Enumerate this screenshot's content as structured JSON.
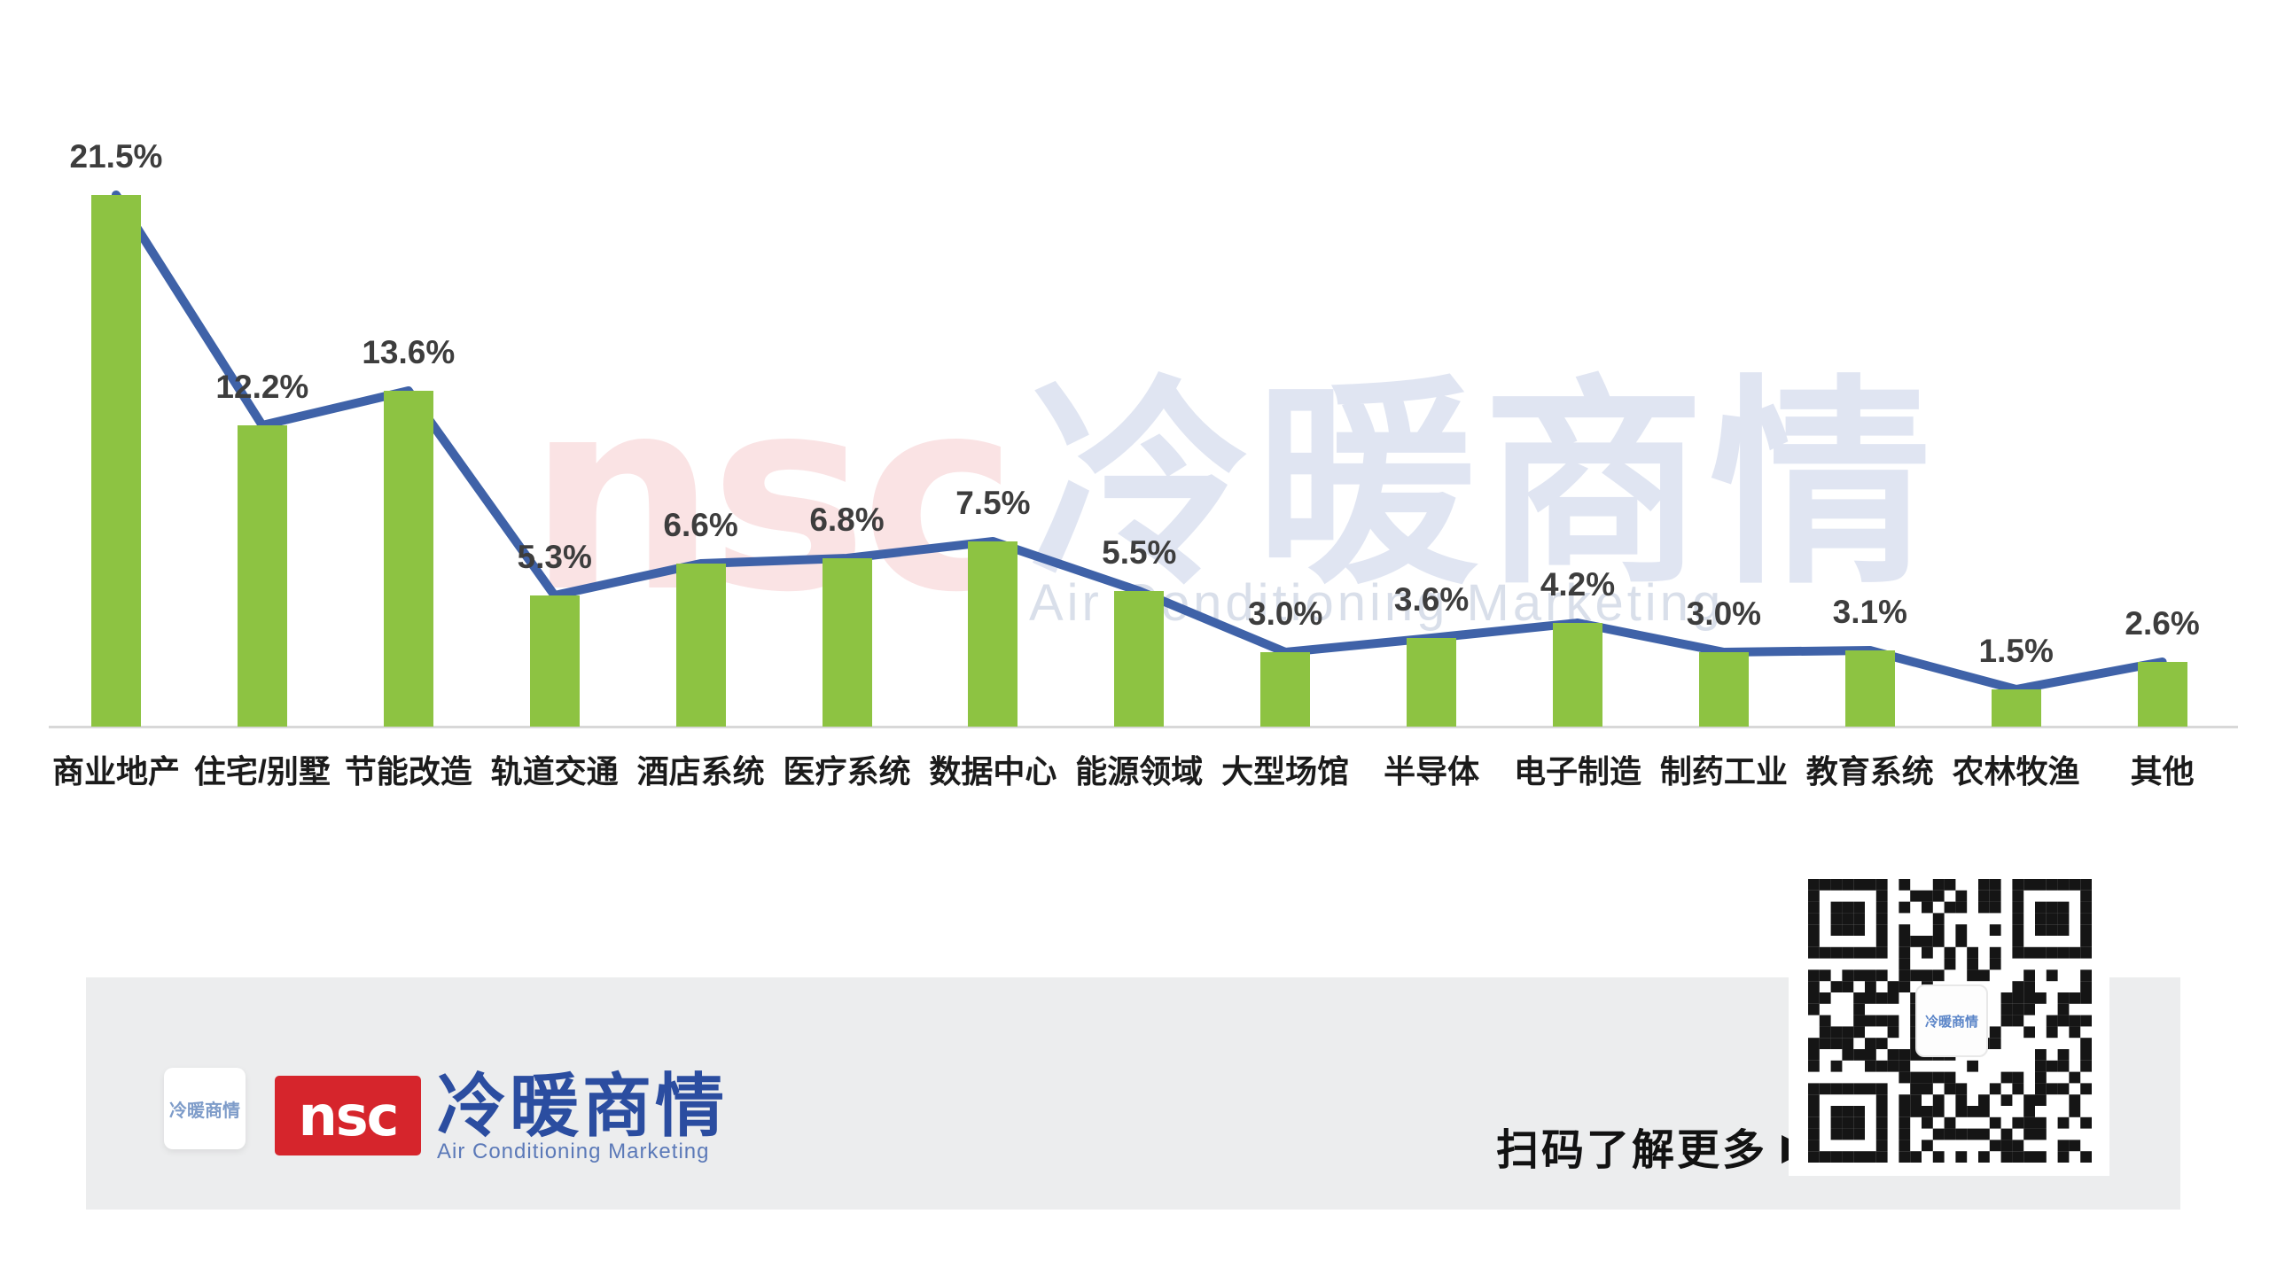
{
  "chart_data": {
    "type": "bar",
    "overlay": "line",
    "title": "",
    "categories": [
      "商业地产",
      "住宅/别墅",
      "节能改造",
      "轨道交通",
      "酒店系统",
      "医疗系统",
      "数据中心",
      "能源领域",
      "大型场馆",
      "半导体",
      "电子制造",
      "制药工业",
      "教育系统",
      "农林牧渔",
      "其他"
    ],
    "values": [
      21.5,
      12.2,
      13.6,
      5.3,
      6.6,
      6.8,
      7.5,
      5.5,
      3.0,
      3.6,
      4.2,
      3.0,
      3.1,
      1.5,
      2.6
    ],
    "value_labels": [
      "21.5%",
      "12.2%",
      "13.6%",
      "5.3%",
      "6.6%",
      "6.8%",
      "7.5%",
      "5.5%",
      "3.0%",
      "3.6%",
      "4.2%",
      "3.0%",
      "3.1%",
      "1.5%",
      "2.6%"
    ],
    "xlabel": "",
    "ylabel": "",
    "ylim": [
      0,
      25
    ],
    "grid": false,
    "legend": "none",
    "bar_color": "#8dc342",
    "line_color": "#3f62a8"
  },
  "watermark": {
    "nsc": "nsc",
    "cn": "冷暖商情",
    "en": "Air Conditioning Marketing"
  },
  "footer": {
    "mini_logo_text": "冷暖商情",
    "logo_nsc": "nsc",
    "logo_cn": "冷暖商情",
    "logo_en": "Air Conditioning Marketing",
    "scan_text": "扫码了解更多",
    "scan_arrow": "▶"
  },
  "colors": {
    "bar_green": "#8dc342",
    "line_blue": "#3f62a8",
    "brand_red": "#d6252c",
    "brand_blue": "#2b4da0",
    "footer_gray": "#ecedee"
  }
}
